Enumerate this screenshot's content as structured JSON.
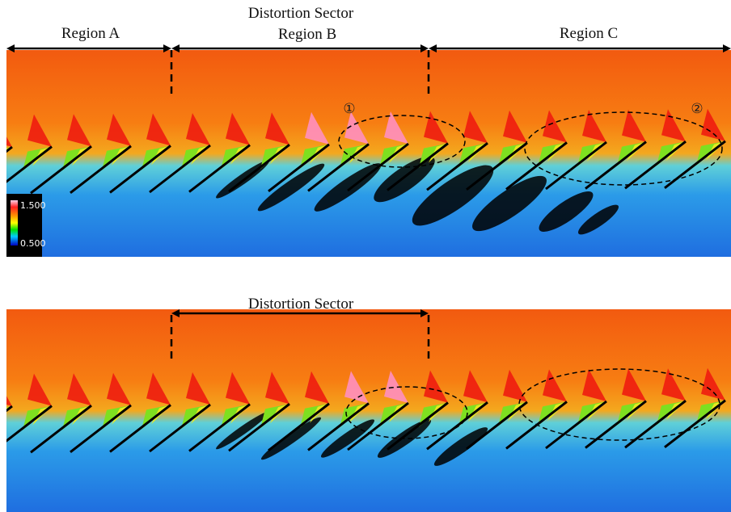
{
  "panels": [
    {
      "distortion_label": "Distortion Sector",
      "region_a": "Region A",
      "region_b": "Region B",
      "region_c": "Region C",
      "marker_1": "①",
      "marker_2": "②",
      "colorbar": {
        "max_label": "1.500",
        "min_label": "0.500"
      }
    },
    {
      "distortion_label": "Distortion Sector"
    }
  ]
}
